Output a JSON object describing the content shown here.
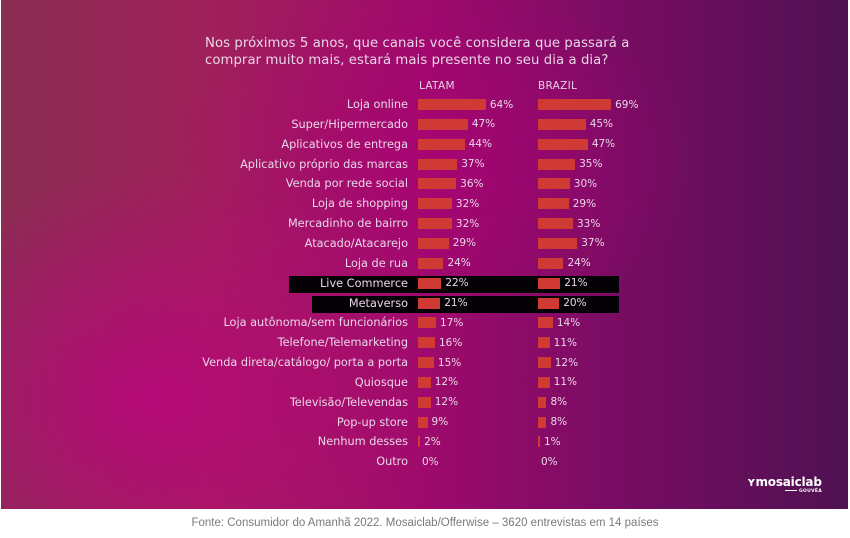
{
  "chart_data": {
    "type": "bar",
    "orientation": "horizontal",
    "title": "Nos próximos 5 anos, que canais você considera que passará a comprar muito mais, estará mais presente no seu dia a dia?",
    "title_lines": [
      "Nos próximos 5 anos, que canais você considera que passará a",
      "comprar muito mais, estará mais presente no seu dia a dia?"
    ],
    "categories": [
      "Loja online",
      "Super/Hipermercado",
      "Aplicativos de entrega",
      "Aplicativo próprio das marcas",
      "Venda por rede social",
      "Loja de shopping",
      "Mercadinho de bairro",
      "Atacado/Atacarejo",
      "Loja de rua",
      "Live Commerce",
      "Metaverso",
      "Loja autônoma/sem funcionários",
      "Telefone/Telemarketing",
      "Venda direta/catálogo/ porta a porta",
      "Quiosque",
      "Televisão/Televendas",
      "Pop-up store",
      "Nenhum desses",
      "Outro"
    ],
    "highlighted": [
      "Live Commerce",
      "Metaverso"
    ],
    "series": [
      {
        "name": "LATAM",
        "values": [
          64,
          47,
          44,
          37,
          36,
          32,
          32,
          29,
          24,
          22,
          21,
          17,
          16,
          15,
          12,
          12,
          9,
          2,
          0
        ],
        "labels": [
          "64%",
          "47%",
          "44%",
          "37%",
          "36%",
          "32%",
          "32%",
          "29%",
          "24%",
          "22%",
          "21%",
          "17%",
          "16%",
          "15%",
          "12%",
          "12%",
          "9%",
          "2%",
          "0%"
        ]
      },
      {
        "name": "BRAZIL",
        "values": [
          69,
          45,
          47,
          35,
          30,
          29,
          33,
          37,
          24,
          21,
          20,
          14,
          11,
          12,
          11,
          8,
          8,
          1,
          0
        ],
        "labels": [
          "69%",
          "45%",
          "47%",
          "35%",
          "30%",
          "29%",
          "33%",
          "37%",
          "24%",
          "21%",
          "20%",
          "14%",
          "11%",
          "12%",
          "11%",
          "8%",
          "8%",
          "1%",
          "0%"
        ]
      }
    ],
    "unit": "%",
    "xlim": [
      0,
      100
    ],
    "legend": "column headers",
    "grid": false,
    "colors": {
      "bar": "#d03a34",
      "highlight_bg": "#050206",
      "text": "#ead6e8"
    }
  },
  "logo": {
    "main": "ʏmosaiclab",
    "sub": "GOUVÊA"
  },
  "caption": "Fonte: Consumidor do Amanhã 2022. Mosaiclab/Offerwise – 3620 entrevistas em 14 países"
}
